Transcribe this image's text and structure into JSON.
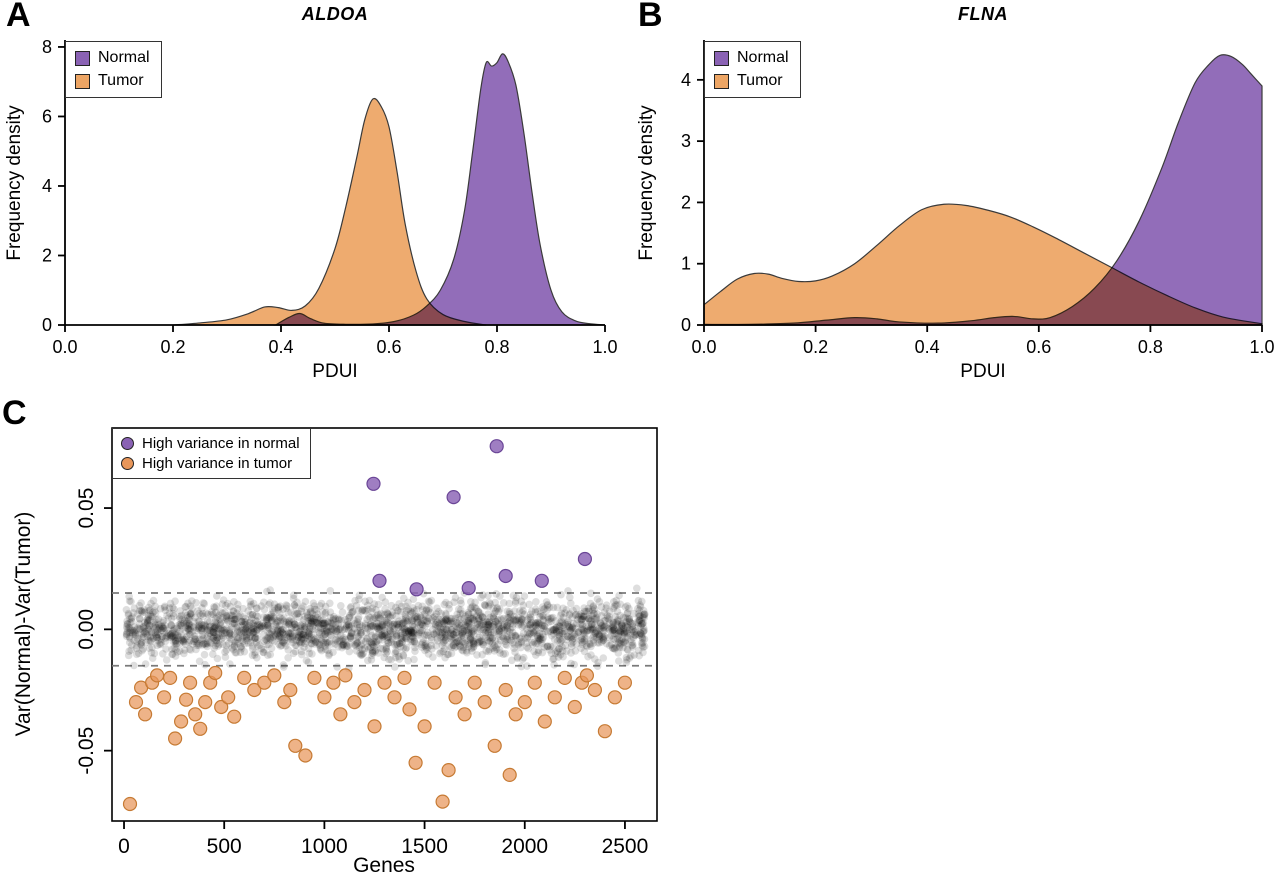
{
  "figure": {
    "panel_a_label": "A",
    "panel_b_label": "B",
    "panel_c_label": "C"
  },
  "colors": {
    "normal": "#8A62B4",
    "tumor": "#EDA564",
    "normal_point": "#8A62B4",
    "tumor_point": "#E8965A",
    "background_point": "#000000",
    "threshold_line": "#7a7a7a",
    "axis": "#000000"
  },
  "chart_data": [
    {
      "id": "aldoa_density",
      "type": "area",
      "panel": "A",
      "title": "ALDOA",
      "xlabel": "PDUI",
      "ylabel": "Frequency density",
      "xlim": [
        0.0,
        1.0
      ],
      "ylim": [
        0,
        8.2
      ],
      "xtick_values": [
        0.0,
        0.2,
        0.4,
        0.6,
        0.8,
        1.0
      ],
      "xtick_labels": [
        "0.0",
        "0.2",
        "0.4",
        "0.6",
        "0.8",
        "1.0"
      ],
      "ytick_values": [
        0,
        2,
        4,
        6,
        8
      ],
      "ytick_labels": [
        "0",
        "2",
        "4",
        "6",
        "8"
      ],
      "grid": false,
      "legend_position": "top-left",
      "legend": [
        {
          "label": "Normal",
          "color": "#8A62B4"
        },
        {
          "label": "Tumor",
          "color": "#EDA564"
        }
      ],
      "series": [
        {
          "name": "Tumor",
          "color": "#EDA564",
          "x": [
            0.2,
            0.25,
            0.3,
            0.34,
            0.37,
            0.395,
            0.42,
            0.445,
            0.47,
            0.5,
            0.52,
            0.54,
            0.555,
            0.57,
            0.585,
            0.6,
            0.615,
            0.63,
            0.65,
            0.67,
            0.7,
            0.74,
            0.78
          ],
          "y": [
            0.0,
            0.06,
            0.15,
            0.33,
            0.52,
            0.5,
            0.42,
            0.55,
            1.05,
            2.2,
            3.4,
            4.8,
            5.9,
            6.5,
            6.3,
            5.7,
            4.4,
            2.9,
            1.55,
            0.75,
            0.3,
            0.1,
            0.0
          ]
        },
        {
          "name": "Normal",
          "color": "#8A62B4",
          "x": [
            0.39,
            0.415,
            0.435,
            0.455,
            0.48,
            0.52,
            0.57,
            0.61,
            0.645,
            0.67,
            0.695,
            0.72,
            0.74,
            0.755,
            0.77,
            0.78,
            0.79,
            0.8,
            0.81,
            0.82,
            0.835,
            0.85,
            0.865,
            0.88,
            0.9,
            0.92,
            0.945,
            0.97,
            1.0
          ],
          "y": [
            0.0,
            0.22,
            0.33,
            0.18,
            0.05,
            0.02,
            0.03,
            0.1,
            0.28,
            0.55,
            1.0,
            1.9,
            3.3,
            5.0,
            6.8,
            7.55,
            7.45,
            7.55,
            7.8,
            7.6,
            6.9,
            5.5,
            3.8,
            2.3,
            1.0,
            0.38,
            0.12,
            0.04,
            0.0
          ]
        }
      ]
    },
    {
      "id": "flna_density",
      "type": "area",
      "panel": "B",
      "title": "FLNA",
      "xlabel": "PDUI",
      "ylabel": "Frequency density",
      "xlim": [
        0.0,
        1.0
      ],
      "ylim": [
        0,
        4.65
      ],
      "xtick_values": [
        0.0,
        0.2,
        0.4,
        0.6,
        0.8,
        1.0
      ],
      "xtick_labels": [
        "0.0",
        "0.2",
        "0.4",
        "0.6",
        "0.8",
        "1.0"
      ],
      "ytick_values": [
        0,
        1,
        2,
        3,
        4
      ],
      "ytick_labels": [
        "0",
        "1",
        "2",
        "3",
        "4"
      ],
      "grid": false,
      "legend_position": "top-left",
      "legend": [
        {
          "label": "Normal",
          "color": "#8A62B4"
        },
        {
          "label": "Tumor",
          "color": "#EDA564"
        }
      ],
      "series": [
        {
          "name": "Tumor",
          "color": "#EDA564",
          "x": [
            0.0,
            0.03,
            0.06,
            0.09,
            0.115,
            0.14,
            0.17,
            0.2,
            0.23,
            0.27,
            0.31,
            0.35,
            0.39,
            0.43,
            0.47,
            0.51,
            0.55,
            0.59,
            0.63,
            0.68,
            0.73,
            0.78,
            0.83,
            0.88,
            0.93,
            1.0
          ],
          "y": [
            0.33,
            0.55,
            0.75,
            0.84,
            0.83,
            0.76,
            0.71,
            0.72,
            0.8,
            1.0,
            1.3,
            1.62,
            1.88,
            1.97,
            1.95,
            1.87,
            1.76,
            1.6,
            1.42,
            1.18,
            0.94,
            0.7,
            0.48,
            0.28,
            0.13,
            0.02
          ]
        },
        {
          "name": "Normal",
          "color": "#8A62B4",
          "x": [
            0.0,
            0.08,
            0.16,
            0.22,
            0.27,
            0.31,
            0.35,
            0.42,
            0.48,
            0.52,
            0.555,
            0.59,
            0.62,
            0.66,
            0.7,
            0.74,
            0.78,
            0.82,
            0.85,
            0.88,
            0.905,
            0.925,
            0.945,
            0.965,
            0.98,
            1.0
          ],
          "y": [
            0.01,
            0.01,
            0.03,
            0.08,
            0.12,
            0.1,
            0.05,
            0.03,
            0.07,
            0.12,
            0.14,
            0.1,
            0.12,
            0.3,
            0.6,
            1.05,
            1.7,
            2.55,
            3.3,
            3.95,
            4.25,
            4.4,
            4.38,
            4.25,
            4.1,
            3.9
          ]
        }
      ]
    },
    {
      "id": "variance_scatter",
      "type": "scatter",
      "panel": "C",
      "title": "",
      "xlabel": "Genes",
      "ylabel": "Var(Normal)-Var(Tumor)",
      "xlim": [
        -60,
        2660
      ],
      "ylim": [
        -0.079,
        0.083
      ],
      "xtick_values": [
        0,
        500,
        1000,
        1500,
        2000,
        2500
      ],
      "xtick_labels": [
        "0",
        "500",
        "1000",
        "1500",
        "2000",
        "2500"
      ],
      "ytick_values": [
        0.05,
        0.0,
        -0.05
      ],
      "ytick_labels": [
        "0.05",
        "0.00",
        "-0.05"
      ],
      "grid": false,
      "legend_position": "top-left",
      "threshold_lines": [
        0.015,
        -0.015
      ],
      "legend": [
        {
          "label": "High variance in normal",
          "color": "#8A62B4"
        },
        {
          "label": "High variance in tumor",
          "color": "#E8965A"
        }
      ],
      "high_variance_normal": {
        "x": [
          1245,
          1275,
          1460,
          1645,
          1720,
          1860,
          1905,
          2085,
          2300
        ],
        "y": [
          0.06,
          0.02,
          0.0165,
          0.0545,
          0.017,
          0.0755,
          0.022,
          0.02,
          0.029
        ]
      },
      "high_variance_tumor": {
        "x": [
          30,
          60,
          85,
          105,
          140,
          165,
          200,
          230,
          255,
          285,
          310,
          330,
          355,
          380,
          405,
          430,
          455,
          485,
          520,
          550,
          600,
          650,
          700,
          750,
          800,
          830,
          855,
          905,
          950,
          1000,
          1045,
          1080,
          1105,
          1150,
          1200,
          1250,
          1300,
          1350,
          1400,
          1425,
          1455,
          1500,
          1550,
          1590,
          1620,
          1655,
          1700,
          1750,
          1800,
          1850,
          1905,
          1925,
          1955,
          2000,
          2050,
          2100,
          2150,
          2200,
          2250,
          2285,
          2310,
          2350,
          2400,
          2450,
          2500
        ],
        "y": [
          -0.072,
          -0.03,
          -0.024,
          -0.035,
          -0.022,
          -0.019,
          -0.028,
          -0.02,
          -0.045,
          -0.038,
          -0.029,
          -0.022,
          -0.035,
          -0.041,
          -0.03,
          -0.022,
          -0.018,
          -0.032,
          -0.028,
          -0.036,
          -0.02,
          -0.025,
          -0.022,
          -0.019,
          -0.03,
          -0.025,
          -0.048,
          -0.052,
          -0.02,
          -0.028,
          -0.022,
          -0.035,
          -0.019,
          -0.03,
          -0.025,
          -0.04,
          -0.022,
          -0.028,
          -0.02,
          -0.033,
          -0.055,
          -0.04,
          -0.022,
          -0.071,
          -0.058,
          -0.028,
          -0.035,
          -0.022,
          -0.03,
          -0.048,
          -0.025,
          -0.06,
          -0.035,
          -0.03,
          -0.022,
          -0.038,
          -0.028,
          -0.02,
          -0.032,
          -0.022,
          -0.019,
          -0.025,
          -0.042,
          -0.028,
          -0.022
        ]
      },
      "background_cloud": {
        "count": 2300,
        "x_range": [
          10,
          2600
        ],
        "y_sd": 0.0057,
        "seed": 42,
        "description": "genes with similar variance in normal and tumor, clustered around 0 between the dashed thresholds"
      }
    }
  ]
}
